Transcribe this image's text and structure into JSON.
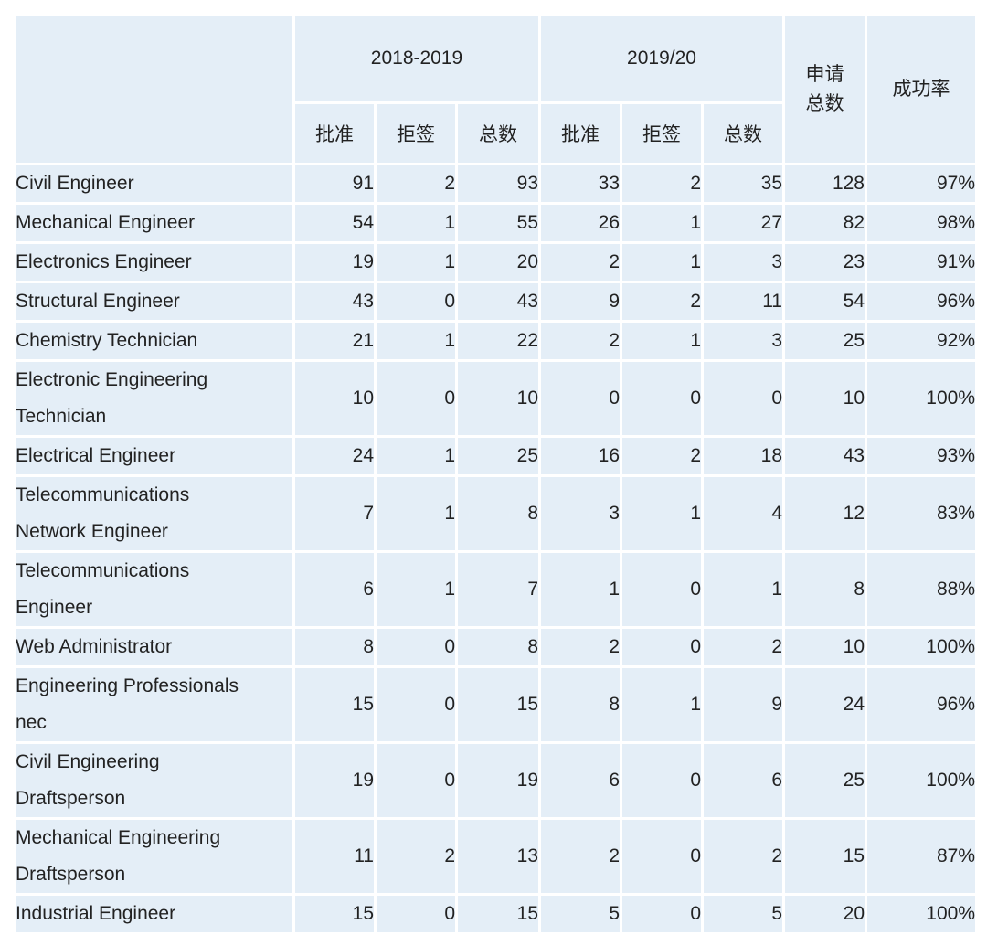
{
  "header": {
    "group1": "2018-2019",
    "group2": "2019/20",
    "total_applications": "申请\n总数",
    "success_rate": "成功率",
    "sub_labels": [
      "批准",
      "拒签",
      "总数",
      "批准",
      "拒签",
      "总数"
    ]
  },
  "rows": [
    {
      "occupation": "Civil Engineer",
      "values": [
        "91",
        "2",
        "93",
        "33",
        "2",
        "35",
        "128",
        "97%"
      ]
    },
    {
      "occupation": "Mechanical Engineer",
      "values": [
        "54",
        "1",
        "55",
        "26",
        "1",
        "27",
        "82",
        "98%"
      ]
    },
    {
      "occupation": "Electronics Engineer",
      "values": [
        "19",
        "1",
        "20",
        "2",
        "1",
        "3",
        "23",
        "91%"
      ]
    },
    {
      "occupation": "Structural Engineer",
      "values": [
        "43",
        "0",
        "43",
        "9",
        "2",
        "11",
        "54",
        "96%"
      ]
    },
    {
      "occupation": "Chemistry Technician",
      "values": [
        "21",
        "1",
        "22",
        "2",
        "1",
        "3",
        "25",
        "92%"
      ]
    },
    {
      "occupation": "Electronic Engineering\nTechnician",
      "values": [
        "10",
        "0",
        "10",
        "0",
        "0",
        "0",
        "10",
        "100%"
      ]
    },
    {
      "occupation": "Electrical Engineer",
      "values": [
        "24",
        "1",
        "25",
        "16",
        "2",
        "18",
        "43",
        "93%"
      ]
    },
    {
      "occupation": "Telecommunications\nNetwork Engineer",
      "values": [
        "7",
        "1",
        "8",
        "3",
        "1",
        "4",
        "12",
        "83%"
      ]
    },
    {
      "occupation": "Telecommunications\nEngineer",
      "values": [
        "6",
        "1",
        "7",
        "1",
        "0",
        "1",
        "8",
        "88%"
      ]
    },
    {
      "occupation": "Web Administrator",
      "values": [
        "8",
        "0",
        "8",
        "2",
        "0",
        "2",
        "10",
        "100%"
      ]
    },
    {
      "occupation": "Engineering Professionals\nnec",
      "values": [
        "15",
        "0",
        "15",
        "8",
        "1",
        "9",
        "24",
        "96%"
      ]
    },
    {
      "occupation": "Civil Engineering\nDraftsperson",
      "values": [
        "19",
        "0",
        "19",
        "6",
        "0",
        "6",
        "25",
        "100%"
      ]
    },
    {
      "occupation": "Mechanical Engineering\nDraftsperson",
      "values": [
        "11",
        "2",
        "13",
        "2",
        "0",
        "2",
        "15",
        "87%"
      ]
    },
    {
      "occupation": "Industrial Engineer",
      "values": [
        "15",
        "0",
        "15",
        "5",
        "0",
        "5",
        "20",
        "100%"
      ]
    }
  ]
}
